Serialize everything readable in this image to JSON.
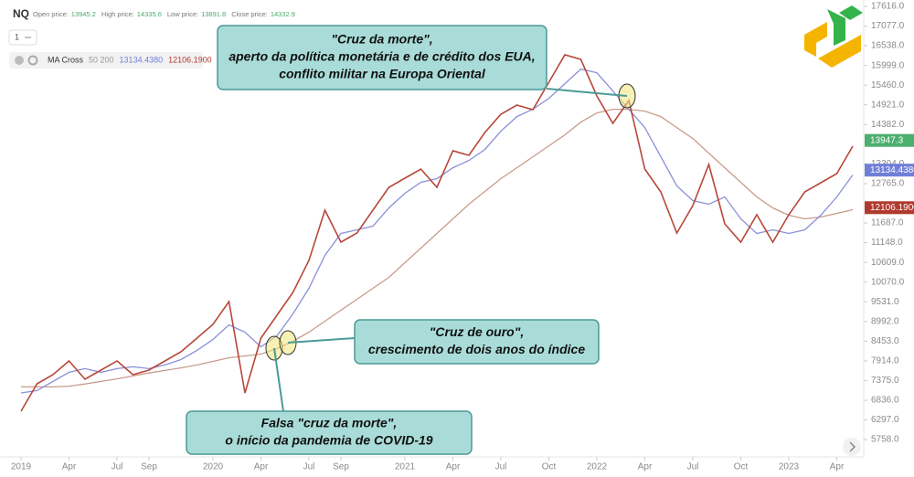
{
  "chart_data": {
    "type": "line",
    "symbol": "NQ",
    "ohlc": [
      {
        "label": "Open price:",
        "value": "13945.2"
      },
      {
        "label": "High price:",
        "value": "14335.6"
      },
      {
        "label": "Low price:",
        "value": "13891.8"
      },
      {
        "label": "Close price:",
        "value": "14332.9"
      }
    ],
    "interval": "1",
    "indicator": {
      "name": "MA Cross",
      "params": "50 200",
      "values": [
        "13134.4380",
        "12106.1900"
      ]
    },
    "categories": [
      "2019",
      null,
      null,
      "Apr",
      null,
      null,
      "Jul",
      null,
      "Sep",
      null,
      null,
      null,
      "2020",
      null,
      null,
      "Apr",
      null,
      null,
      "Jul",
      null,
      "Sep",
      null,
      null,
      null,
      "2021",
      null,
      null,
      "Apr",
      null,
      null,
      "Jul",
      null,
      null,
      "Oct",
      null,
      null,
      "2022",
      null,
      null,
      "Apr",
      null,
      null,
      "Jul",
      null,
      null,
      "Oct",
      null,
      null,
      "2023",
      null,
      null,
      "Apr",
      null
    ],
    "series": [
      {
        "name": "NQ",
        "color": "#b8473a",
        "values": [
          6536,
          7287,
          7537,
          7912,
          7412,
          7662,
          7912,
          7537,
          7662,
          7912,
          8162,
          8537,
          8912,
          9538,
          7036,
          8537,
          9162,
          9788,
          10663,
          12039,
          11163,
          11413,
          12039,
          12664,
          12914,
          13164,
          12664,
          13664,
          13539,
          14164,
          14665,
          14915,
          14790,
          15540,
          16290,
          16165,
          15165,
          14415,
          15040,
          13164,
          12539,
          11413,
          12164,
          13289,
          11664,
          11163,
          11914,
          11163,
          11914,
          12539,
          12789,
          13039,
          13789
        ]
      },
      {
        "name": "MA 50",
        "color": "#8a90d8",
        "values": [
          7036,
          7100,
          7350,
          7600,
          7700,
          7600,
          7700,
          7750,
          7700,
          7800,
          7950,
          8200,
          8500,
          8900,
          8700,
          8300,
          8600,
          9200,
          9900,
          10800,
          11400,
          11500,
          11600,
          12100,
          12500,
          12800,
          12900,
          13200,
          13400,
          13700,
          14200,
          14600,
          14800,
          15100,
          15500,
          15900,
          15800,
          15300,
          14800,
          14300,
          13500,
          12700,
          12300,
          12200,
          12400,
          11800,
          11400,
          11500,
          11400,
          11500,
          11900,
          12400,
          13000
        ]
      },
      {
        "name": "MA 200",
        "color": "#c79c8c",
        "values": [
          7200,
          7200,
          7200,
          7220,
          7280,
          7350,
          7420,
          7500,
          7580,
          7650,
          7720,
          7800,
          7900,
          8000,
          8050,
          8100,
          8250,
          8450,
          8700,
          9000,
          9300,
          9600,
          9900,
          10200,
          10600,
          11000,
          11400,
          11800,
          12200,
          12550,
          12900,
          13200,
          13500,
          13800,
          14100,
          14450,
          14700,
          14800,
          14800,
          14750,
          14600,
          14300,
          14000,
          13600,
          13200,
          12800,
          12400,
          12100,
          11900,
          11800,
          11850,
          11950,
          12050
        ]
      }
    ],
    "ylim": [
      5285,
      17791
    ],
    "yticks": [
      {
        "value": 17616,
        "label": "17616.0"
      },
      {
        "value": 17077,
        "label": "17077.0"
      },
      {
        "value": 16538,
        "label": "16538.0"
      },
      {
        "value": 15999,
        "label": "15999.0"
      },
      {
        "value": 15460,
        "label": "15460.0"
      },
      {
        "value": 14921,
        "label": "14921.0"
      },
      {
        "value": 14382,
        "label": "14382.0"
      },
      {
        "value": 13304,
        "label": "13304.0"
      },
      {
        "value": 12765,
        "label": "12765.0"
      },
      {
        "value": 11687,
        "label": "11687.0"
      },
      {
        "value": 11148,
        "label": "11148.0"
      },
      {
        "value": 10609,
        "label": "10609.0"
      },
      {
        "value": 10070,
        "label": "10070.0"
      },
      {
        "value": 9531,
        "label": "9531.0"
      },
      {
        "value": 8992,
        "label": "8992.0"
      },
      {
        "value": 8453,
        "label": "8453.0"
      },
      {
        "value": 7914,
        "label": "7914.0"
      },
      {
        "value": 7375,
        "label": "7375.0"
      },
      {
        "value": 6836,
        "label": "6836.0"
      },
      {
        "value": 6297,
        "label": "6297.0"
      },
      {
        "value": 5758,
        "label": "5758.0"
      }
    ],
    "price_tags": [
      {
        "value": 13947.3,
        "label": "13947.3",
        "color": "#4caf6e"
      },
      {
        "value": 13134.438,
        "label": "13134.4380",
        "color": "#6f7fd8"
      },
      {
        "value": 12106.19,
        "label": "12106.1900",
        "color": "#b03a2e"
      }
    ],
    "annotations": [
      {
        "lines": [
          "\"Cruz da morte\",",
          "aperto da política monetária e de crédito dos EUA,",
          "conflito militar na Europa Oriental"
        ]
      },
      {
        "lines": [
          "\"Cruz de ouro\",",
          "crescimento de dois anos do índice"
        ]
      },
      {
        "lines": [
          "Falsa \"cruz da morte\",",
          "o início da pandemia de COVID-19"
        ]
      }
    ]
  }
}
